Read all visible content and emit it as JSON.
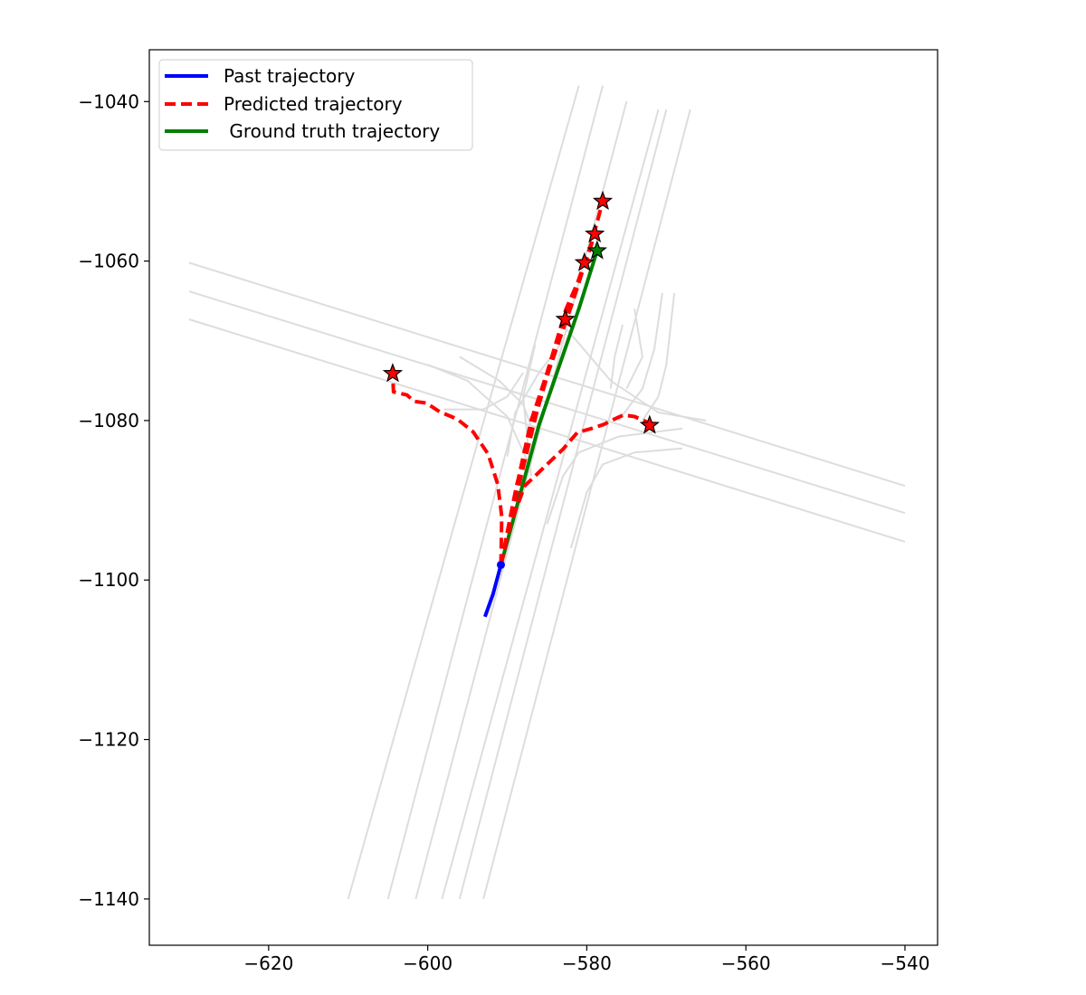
{
  "chart_data": {
    "type": "line",
    "title": "",
    "xlabel": "",
    "ylabel": "",
    "xlim": [
      -635,
      -535.9
    ],
    "ylim": [
      -1145.8,
      -1033.5
    ],
    "grid": false,
    "legend_position": "top-left",
    "x_ticks": [
      {
        "value": -620,
        "label": "−620"
      },
      {
        "value": -600,
        "label": "−600"
      },
      {
        "value": -580,
        "label": "−580"
      },
      {
        "value": -560,
        "label": "−560"
      },
      {
        "value": -540,
        "label": "−540"
      }
    ],
    "y_ticks": [
      {
        "value": -1040,
        "label": "−1040"
      },
      {
        "value": -1060,
        "label": "−1060"
      },
      {
        "value": -1080,
        "label": "−1080"
      },
      {
        "value": -1100,
        "label": "−1100"
      },
      {
        "value": -1120,
        "label": "−1120"
      },
      {
        "value": -1140,
        "label": "−1140"
      }
    ],
    "legend": [
      {
        "label": "Past trajectory",
        "color": "#0000ff",
        "style": "solid"
      },
      {
        "label": "Predicted trajectory",
        "color": "#ff0000",
        "style": "dashed"
      },
      {
        "label": " Ground truth trajectory",
        "color": "#008000",
        "style": "solid"
      }
    ],
    "map_lanes": {
      "color": "#dddddd",
      "lines": [
        [
          [
            -610.0,
            -1140.0
          ],
          [
            -581.0,
            -1038.0
          ]
        ],
        [
          [
            -605.0,
            -1140.0
          ],
          [
            -578.0,
            -1038.0
          ]
        ],
        [
          [
            -601.5,
            -1140.0
          ],
          [
            -575.0,
            -1040.0
          ]
        ],
        [
          [
            -598.2,
            -1140.0
          ],
          [
            -571.0,
            -1041.0
          ]
        ],
        [
          [
            -596.0,
            -1140.0
          ],
          [
            -570.0,
            -1041.0
          ]
        ],
        [
          [
            -593.0,
            -1140.0
          ],
          [
            -567.0,
            -1041.0
          ]
        ],
        [
          [
            -630.0,
            -1060.2
          ],
          [
            -540.0,
            -1088.2
          ]
        ],
        [
          [
            -630.0,
            -1063.8
          ],
          [
            -540.0,
            -1091.6
          ]
        ],
        [
          [
            -630.0,
            -1067.3
          ],
          [
            -540.0,
            -1095.2
          ]
        ],
        [
          [
            -600.0,
            -1073.0
          ],
          [
            -595.0,
            -1075.0
          ],
          [
            -590.0,
            -1079.5
          ],
          [
            -587.5,
            -1085.0
          ]
        ],
        [
          [
            -596.0,
            -1072.0
          ],
          [
            -591.0,
            -1075.0
          ],
          [
            -588.0,
            -1078.0
          ],
          [
            -586.5,
            -1082.0
          ]
        ],
        [
          [
            -598.0,
            -1078.6
          ],
          [
            -593.0,
            -1078.6
          ],
          [
            -590.0,
            -1077.0
          ],
          [
            -588.0,
            -1074.0
          ]
        ],
        [
          [
            -590.0,
            -1084.5
          ],
          [
            -589.0,
            -1079.0
          ],
          [
            -586.0,
            -1074.0
          ],
          [
            -583.0,
            -1070.0
          ]
        ],
        [
          [
            -577.0,
            -1076.0
          ],
          [
            -576.5,
            -1072.0
          ],
          [
            -575.5,
            -1068.0
          ]
        ],
        [
          [
            -576.0,
            -1080.0
          ],
          [
            -573.0,
            -1076.0
          ],
          [
            -571.5,
            -1071.0
          ],
          [
            -570.5,
            -1064.0
          ]
        ],
        [
          [
            -573.0,
            -1080.0
          ],
          [
            -571.0,
            -1077.0
          ],
          [
            -570.0,
            -1073.0
          ],
          [
            -569.0,
            -1064.0
          ]
        ],
        [
          [
            -583.0,
            -1068.0
          ],
          [
            -577.0,
            -1075.0
          ],
          [
            -571.0,
            -1079.0
          ],
          [
            -565.0,
            -1080.0
          ]
        ],
        [
          [
            -585.0,
            -1093.0
          ],
          [
            -583.0,
            -1087.0
          ],
          [
            -581.0,
            -1084.0
          ],
          [
            -576.0,
            -1082.0
          ],
          [
            -568.0,
            -1081.0
          ]
        ],
        [
          [
            -582.0,
            -1096.0
          ],
          [
            -580.0,
            -1089.0
          ],
          [
            -578.0,
            -1085.5
          ],
          [
            -574.0,
            -1084.0
          ],
          [
            -568.0,
            -1083.5
          ]
        ],
        [
          [
            -587.0,
            -1087.0
          ],
          [
            -588.0,
            -1077.0
          ],
          [
            -586.5,
            -1070.5
          ]
        ],
        [
          [
            -575.0,
            -1076.0
          ],
          [
            -573.0,
            -1072.0
          ],
          [
            -574.0,
            -1066.0
          ]
        ]
      ]
    },
    "series": [
      {
        "name": "Past trajectory",
        "color": "#0000ff",
        "points": [
          [
            -592.8,
            -1104.6
          ],
          [
            -591.8,
            -1101.8
          ],
          [
            -590.8,
            -1098.1
          ]
        ]
      },
      {
        "name": " Ground truth trajectory",
        "color": "#008000",
        "points": [
          [
            -590.8,
            -1098.1
          ],
          [
            -586.0,
            -1080.5
          ],
          [
            -581.0,
            -1066.0
          ],
          [
            -578.7,
            -1058.7
          ]
        ]
      },
      {
        "name": "Predicted trajectory",
        "color": "#ff0000",
        "predictions": [
          [
            [
              -590.8,
              -1098.1
            ],
            [
              -589.2,
              -1090.0
            ],
            [
              -587.0,
              -1080.0
            ],
            [
              -585.0,
              -1074.0
            ],
            [
              -583.2,
              -1068.0
            ],
            [
              -582.7,
              -1067.3
            ]
          ],
          [
            [
              -590.8,
              -1098.1
            ],
            [
              -589.0,
              -1090.0
            ],
            [
              -586.3,
              -1079.0
            ],
            [
              -583.7,
              -1070.0
            ],
            [
              -581.6,
              -1064.0
            ],
            [
              -580.3,
              -1060.2
            ]
          ],
          [
            [
              -590.8,
              -1098.1
            ],
            [
              -588.9,
              -1089.0
            ],
            [
              -585.8,
              -1077.0
            ],
            [
              -582.6,
              -1066.0
            ],
            [
              -580.4,
              -1061.0
            ],
            [
              -579.0,
              -1056.6
            ]
          ],
          [
            [
              -590.8,
              -1098.1
            ],
            [
              -588.8,
              -1088.0
            ],
            [
              -585.2,
              -1075.0
            ],
            [
              -581.4,
              -1064.0
            ],
            [
              -579.2,
              -1057.0
            ],
            [
              -578.0,
              -1052.5
            ]
          ],
          [
            [
              -590.8,
              -1098.1
            ],
            [
              -590.7,
              -1092.0
            ],
            [
              -591.2,
              -1088.0
            ],
            [
              -592.4,
              -1084.2
            ],
            [
              -594.3,
              -1081.4
            ],
            [
              -596.3,
              -1079.8
            ],
            [
              -598.5,
              -1078.9
            ],
            [
              -600.2,
              -1077.8
            ],
            [
              -601.7,
              -1077.6
            ],
            [
              -602.6,
              -1076.8
            ],
            [
              -604.3,
              -1076.4
            ],
            [
              -604.4,
              -1074.1
            ]
          ],
          [
            [
              -590.8,
              -1098.1
            ],
            [
              -589.6,
              -1093.0
            ],
            [
              -587.8,
              -1088.2
            ],
            [
              -585.0,
              -1085.5
            ],
            [
              -583.0,
              -1083.6
            ],
            [
              -581.2,
              -1081.5
            ],
            [
              -579.4,
              -1081.0
            ],
            [
              -577.9,
              -1080.5
            ],
            [
              -576.5,
              -1079.8
            ],
            [
              -575.4,
              -1079.3
            ],
            [
              -574.0,
              -1079.5
            ],
            [
              -572.6,
              -1080.1
            ],
            [
              -572.1,
              -1080.6
            ]
          ]
        ]
      }
    ],
    "endpoint_markers": [
      {
        "x": -582.7,
        "y": -1067.3,
        "color": "#ff0000"
      },
      {
        "x": -580.3,
        "y": -1060.2,
        "color": "#ff0000"
      },
      {
        "x": -579.0,
        "y": -1056.6,
        "color": "#ff0000"
      },
      {
        "x": -578.0,
        "y": -1052.5,
        "color": "#ff0000"
      },
      {
        "x": -604.4,
        "y": -1074.1,
        "color": "#ff0000"
      },
      {
        "x": -572.1,
        "y": -1080.6,
        "color": "#ff0000"
      },
      {
        "x": -578.7,
        "y": -1058.7,
        "color": "#008000"
      }
    ],
    "start_point": {
      "x": -590.8,
      "y": -1098.1,
      "color": "#0000ff"
    }
  }
}
